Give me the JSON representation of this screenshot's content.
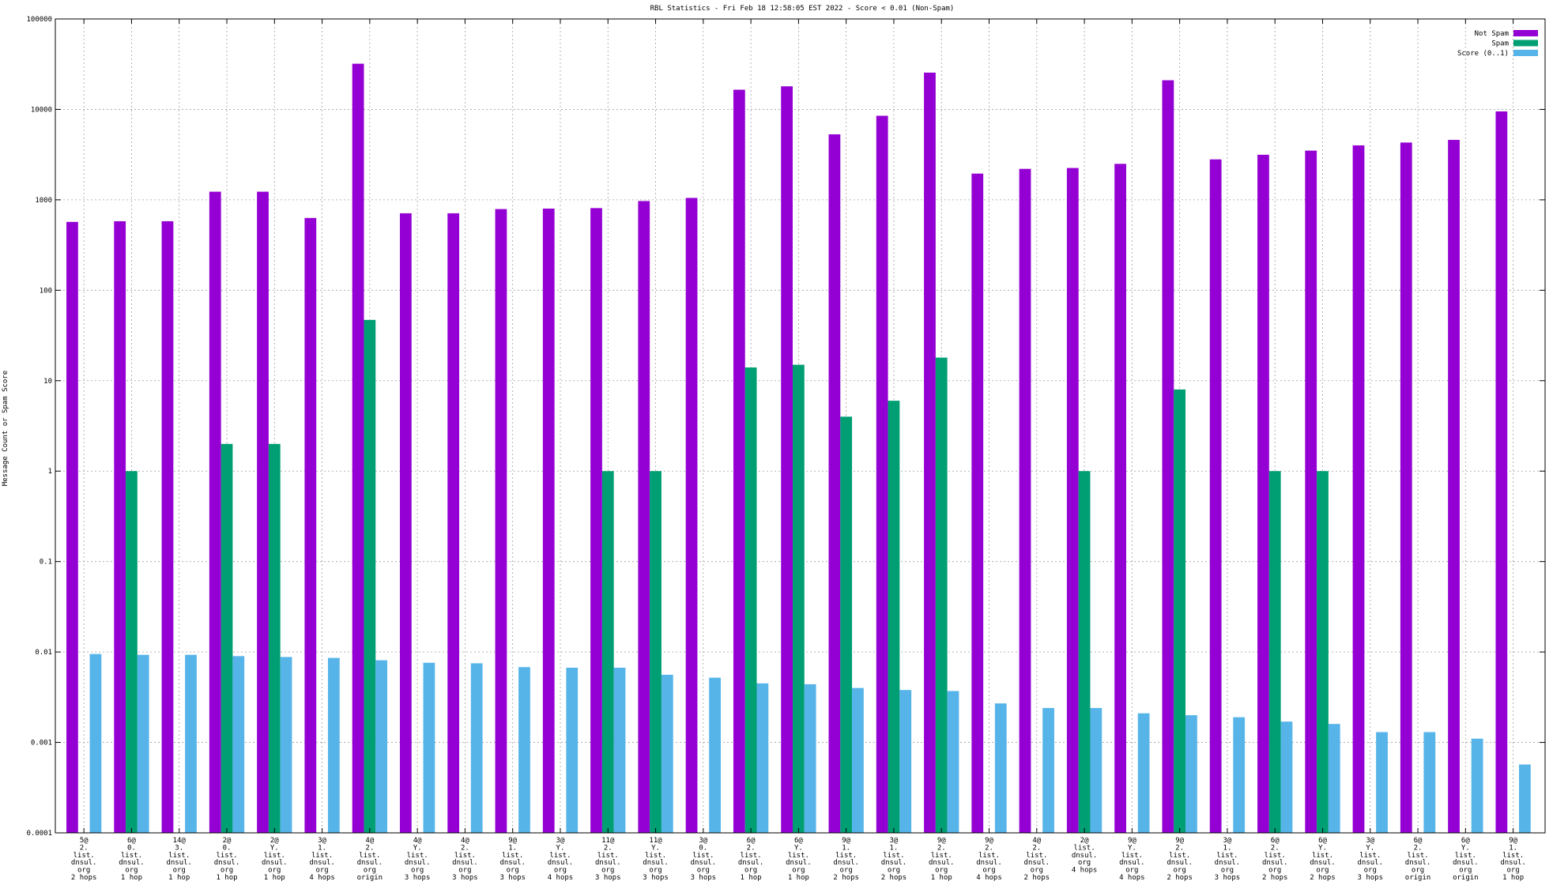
{
  "chart_data": {
    "type": "bar",
    "title": "RBL Statistics - Fri Feb 18 12:58:05 EST 2022 - Score < 0.01 (Non-Spam)",
    "xlabel": "",
    "ylabel": "Message Count or Spam Score",
    "yscale": "log",
    "ylim": [
      0.0001,
      100000
    ],
    "yticks": [
      "0.0001",
      "0.001",
      "0.01",
      "0.1",
      "1",
      "10",
      "100",
      "1000",
      "10000",
      "100000"
    ],
    "grid": true,
    "legend_position": "top-right",
    "categories": [
      [
        "5@",
        "2.",
        "list.",
        "dnsul.",
        "org",
        "2 hops"
      ],
      [
        "6@",
        "0.",
        "list.",
        "dnsul.",
        "org",
        "1 hop"
      ],
      [
        "14@",
        "3.",
        "list.",
        "dnsul.",
        "org",
        "1 hop"
      ],
      [
        "2@",
        "0.",
        "list.",
        "dnsul.",
        "org",
        "1 hop"
      ],
      [
        "2@",
        "Y.",
        "list.",
        "dnsul.",
        "org",
        "1 hop"
      ],
      [
        "3@",
        "1.",
        "list.",
        "dnsul.",
        "org",
        "4 hops"
      ],
      [
        "4@",
        "2.",
        "list.",
        "dnsul.",
        "org",
        "origin"
      ],
      [
        "4@",
        "Y.",
        "list.",
        "dnsul.",
        "org",
        "3 hops"
      ],
      [
        "4@",
        "2.",
        "list.",
        "dnsul.",
        "org",
        "3 hops"
      ],
      [
        "9@",
        "1.",
        "list.",
        "dnsul.",
        "org",
        "3 hops"
      ],
      [
        "3@",
        "Y.",
        "list.",
        "dnsul.",
        "org",
        "4 hops"
      ],
      [
        "11@",
        "2.",
        "list.",
        "dnsul.",
        "org",
        "3 hops"
      ],
      [
        "11@",
        "Y.",
        "list.",
        "dnsul.",
        "org",
        "3 hops"
      ],
      [
        "3@",
        "0.",
        "list.",
        "dnsul.",
        "org",
        "3 hops"
      ],
      [
        "6@",
        "2.",
        "list.",
        "dnsul.",
        "org",
        "1 hop"
      ],
      [
        "6@",
        "Y.",
        "list.",
        "dnsul.",
        "org",
        "1 hop"
      ],
      [
        "9@",
        "1.",
        "list.",
        "dnsul.",
        "org",
        "2 hops"
      ],
      [
        "3@",
        "1.",
        "list.",
        "dnsul.",
        "org",
        "2 hops"
      ],
      [
        "9@",
        "2.",
        "list.",
        "dnsul.",
        "org",
        "1 hop"
      ],
      [
        "9@",
        "2.",
        "list.",
        "dnsul.",
        "org",
        "4 hops"
      ],
      [
        "4@",
        "2.",
        "list.",
        "dnsul.",
        "org",
        "2 hops"
      ],
      [
        "2@",
        "list.",
        "dnsul.",
        "org",
        "4 hops"
      ],
      [
        "9@",
        "Y.",
        "list.",
        "dnsul.",
        "org",
        "4 hops"
      ],
      [
        "9@",
        "2.",
        "list.",
        "dnsul.",
        "org",
        "2 hops"
      ],
      [
        "3@",
        "1.",
        "list.",
        "dnsul.",
        "org",
        "3 hops"
      ],
      [
        "6@",
        "2.",
        "list.",
        "dnsul.",
        "org",
        "2 hops"
      ],
      [
        "6@",
        "Y.",
        "list.",
        "dnsul.",
        "org",
        "2 hops"
      ],
      [
        "3@",
        "Y.",
        "list.",
        "dnsul.",
        "org",
        "3 hops"
      ],
      [
        "6@",
        "2.",
        "list.",
        "dnsul.",
        "org",
        "origin"
      ],
      [
        "6@",
        "Y.",
        "list.",
        "dnsul.",
        "org",
        "origin"
      ],
      [
        "9@",
        "1.",
        "list.",
        "dnsul.",
        "org",
        "1 hop"
      ]
    ],
    "series": [
      {
        "name": "Not Spam",
        "color": "#9400d3",
        "values": [
          570,
          580,
          580,
          1230,
          1230,
          630,
          32000,
          710,
          710,
          790,
          800,
          810,
          970,
          1050,
          16500,
          18000,
          5300,
          8500,
          25500,
          1950,
          2200,
          2250,
          2500,
          21000,
          2800,
          3150,
          3500,
          4000,
          4300,
          4600,
          9500
        ]
      },
      {
        "name": "Spam",
        "color": "#009e73",
        "values": [
          null,
          1,
          null,
          2,
          2,
          null,
          47,
          null,
          null,
          null,
          null,
          1,
          1,
          null,
          14,
          15,
          4,
          6,
          18,
          null,
          null,
          1,
          null,
          8,
          null,
          1,
          1,
          null,
          null,
          null,
          null
        ]
      },
      {
        "name": "Score (0..1)",
        "color": "#56b4e9",
        "values": [
          0.0095,
          0.0093,
          0.0093,
          0.009,
          0.0088,
          0.0086,
          0.0081,
          0.0076,
          0.0075,
          0.0068,
          0.0067,
          0.0067,
          0.0056,
          0.0052,
          0.0045,
          0.0044,
          0.004,
          0.0038,
          0.0037,
          0.0027,
          0.0024,
          0.0024,
          0.0021,
          0.002,
          0.0019,
          0.0017,
          0.0016,
          0.0013,
          0.0013,
          0.0011,
          0.00057
        ]
      }
    ]
  }
}
